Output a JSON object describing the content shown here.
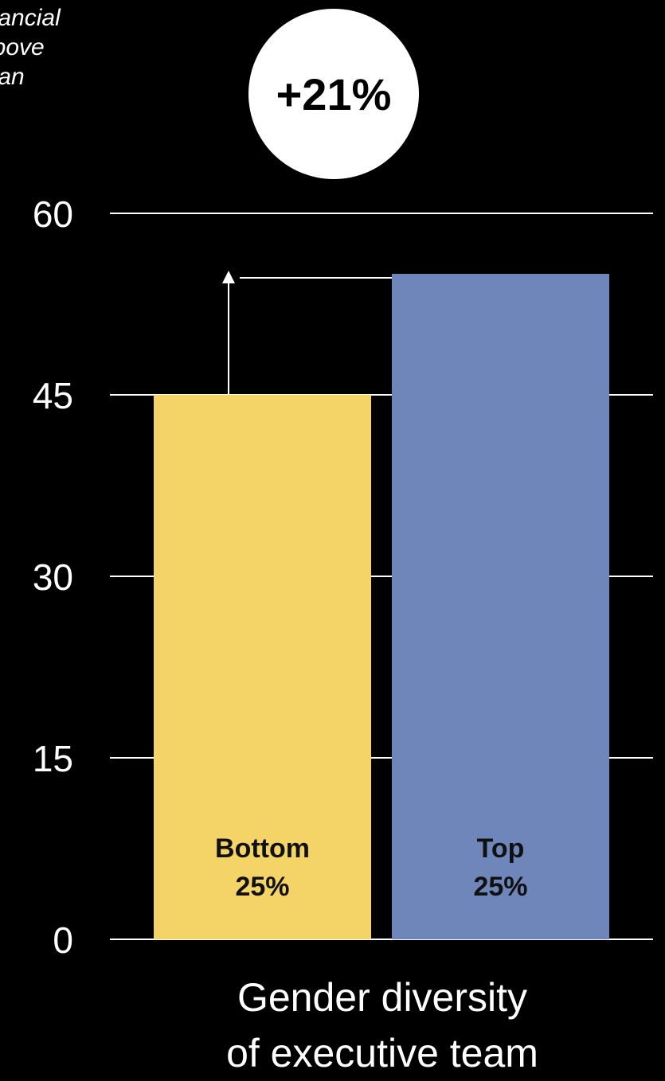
{
  "chart_data": {
    "type": "bar",
    "ylabel_lines": [
      "inancial",
      "above",
      "dian"
    ],
    "xlabel_lines": [
      "Gender diversity",
      "of executive team"
    ],
    "yticks": [
      0,
      15,
      30,
      45,
      60
    ],
    "ylim": [
      0,
      60
    ],
    "grid": true,
    "categories": [
      {
        "line1": "Bottom",
        "line2": "25%"
      },
      {
        "line1": "Top",
        "line2": "25%"
      }
    ],
    "values": [
      45,
      55
    ],
    "colors": [
      "#F4D466",
      "#6E86BA"
    ],
    "annotation": {
      "text": "+21%",
      "from_category": 0,
      "to_category": 1
    }
  }
}
